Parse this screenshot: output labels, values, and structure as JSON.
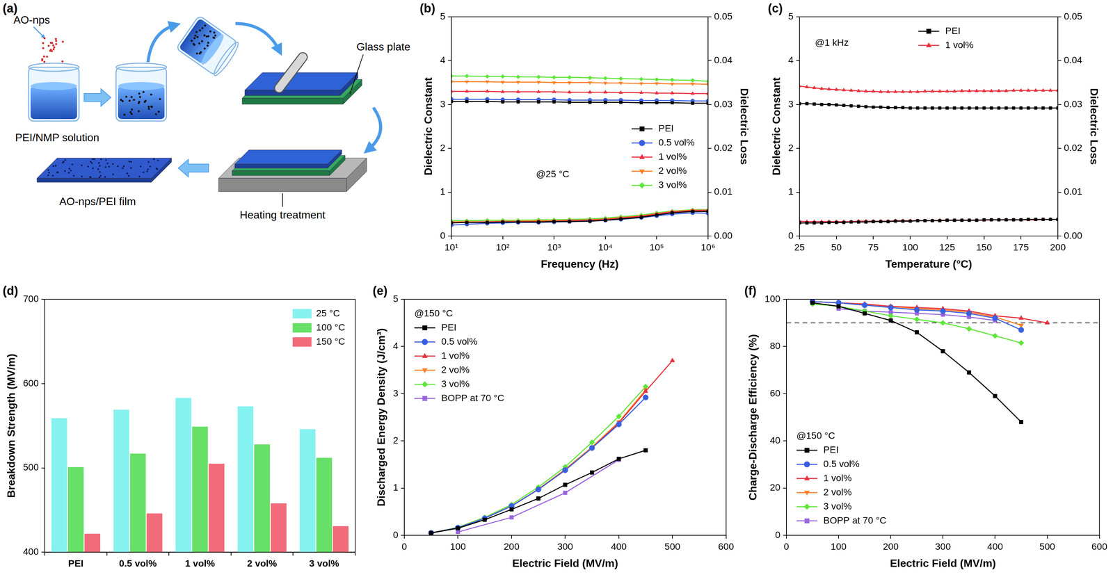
{
  "diagram": {
    "panel": "(a)",
    "labels": {
      "additive": "AO-nps",
      "solution": "PEI/NMP solution",
      "substrate": "Glass plate",
      "product": "AO-nps/PEI film",
      "treatment": "Heating treatment"
    }
  },
  "chart_data": [
    {
      "panel": "(b)",
      "type": "line",
      "x_label": "Frequency (Hz)",
      "y_label": "Dielectric Constant",
      "y2_label": "Dielectric Loss",
      "annotation": "@25 °C",
      "log": "x",
      "grid": false,
      "legend": "center right",
      "xlim": [
        10,
        1000000
      ],
      "xticks": [
        {
          "value": 10,
          "label": "10¹"
        },
        {
          "value": 100,
          "label": "10²"
        },
        {
          "value": 1000,
          "label": "10³"
        },
        {
          "value": 10000,
          "label": "10⁴"
        },
        {
          "value": 100000,
          "label": "10⁵"
        },
        {
          "value": 1000000,
          "label": "10⁶"
        }
      ],
      "ylim": [
        0,
        5
      ],
      "yticks": [
        0,
        1,
        2,
        3,
        4,
        5
      ],
      "y2lim": [
        0,
        0.05
      ],
      "y2ticks": [
        {
          "value": 0,
          "label": "0.00"
        },
        0.01,
        0.02,
        0.03,
        0.04,
        0.05
      ],
      "x": [
        10,
        20,
        50,
        100,
        200,
        500,
        1000,
        2000,
        5000,
        10000,
        20000,
        50000,
        100000,
        200000,
        500000,
        1000000
      ],
      "series": [
        {
          "name": "PEI",
          "color": "#000000",
          "marker": "square",
          "values": [
            3.07,
            3.07,
            3.07,
            3.06,
            3.06,
            3.06,
            3.06,
            3.05,
            3.05,
            3.05,
            3.05,
            3.04,
            3.04,
            3.04,
            3.03,
            3.03
          ],
          "y2_values": [
            0.003,
            0.0031,
            0.0031,
            0.0032,
            0.0032,
            0.0032,
            0.0033,
            0.0033,
            0.0034,
            0.0036,
            0.0039,
            0.0043,
            0.0048,
            0.0053,
            0.0056,
            0.0056
          ]
        },
        {
          "name": "0.5 vol%",
          "color": "#3a5fe0",
          "marker": "circle",
          "values": [
            3.12,
            3.12,
            3.12,
            3.11,
            3.11,
            3.11,
            3.11,
            3.1,
            3.1,
            3.1,
            3.1,
            3.09,
            3.09,
            3.09,
            3.08,
            3.08
          ],
          "y2_values": [
            0.0025,
            0.0027,
            0.0029,
            0.003,
            0.0031,
            0.0031,
            0.0032,
            0.0033,
            0.0034,
            0.0036,
            0.0038,
            0.0042,
            0.0046,
            0.005,
            0.0053,
            0.0052
          ]
        },
        {
          "name": "1 vol%",
          "color": "#e8303c",
          "marker": "triangle",
          "values": [
            3.3,
            3.3,
            3.3,
            3.29,
            3.29,
            3.29,
            3.29,
            3.28,
            3.28,
            3.28,
            3.27,
            3.27,
            3.26,
            3.26,
            3.25,
            3.25
          ],
          "y2_values": [
            0.0031,
            0.0031,
            0.0032,
            0.0032,
            0.0033,
            0.0033,
            0.0034,
            0.0035,
            0.0036,
            0.0038,
            0.0041,
            0.0045,
            0.005,
            0.0055,
            0.0058,
            0.0058
          ]
        },
        {
          "name": "2 vol%",
          "color": "#ff7f27",
          "marker": "triangle-down",
          "values": [
            3.52,
            3.52,
            3.52,
            3.51,
            3.51,
            3.51,
            3.5,
            3.5,
            3.5,
            3.49,
            3.49,
            3.48,
            3.48,
            3.47,
            3.47,
            3.46
          ],
          "y2_values": [
            0.0032,
            0.0033,
            0.0033,
            0.0034,
            0.0034,
            0.0035,
            0.0035,
            0.0036,
            0.0037,
            0.0039,
            0.0042,
            0.0046,
            0.0051,
            0.0056,
            0.0059,
            0.0059
          ]
        },
        {
          "name": "3 vol%",
          "color": "#5ee63a",
          "marker": "diamond",
          "values": [
            3.65,
            3.65,
            3.64,
            3.64,
            3.63,
            3.63,
            3.62,
            3.62,
            3.61,
            3.6,
            3.59,
            3.58,
            3.57,
            3.56,
            3.55,
            3.53
          ],
          "y2_values": [
            0.0035,
            0.0035,
            0.0036,
            0.0036,
            0.0036,
            0.0037,
            0.0037,
            0.0038,
            0.0039,
            0.0041,
            0.0044,
            0.0048,
            0.0053,
            0.0057,
            0.006,
            0.006
          ]
        }
      ]
    },
    {
      "panel": "(c)",
      "type": "line",
      "x_label": "Temperature (°C)",
      "y_label": "Dielectric Constant",
      "y2_label": "Dielectric Loss",
      "annotation": "@1 kHz",
      "grid": false,
      "legend": "upper center",
      "xlim": [
        25,
        200
      ],
      "xticks": [
        25,
        50,
        75,
        100,
        125,
        150,
        175,
        200
      ],
      "ylim": [
        0,
        5
      ],
      "yticks": [
        0,
        1,
        2,
        3,
        4,
        5
      ],
      "y2lim": [
        0,
        0.05
      ],
      "y2ticks": [
        {
          "value": 0,
          "label": "0.00"
        },
        0.01,
        0.02,
        0.03,
        0.04,
        0.05
      ],
      "x": [
        25,
        30,
        35,
        40,
        45,
        50,
        55,
        60,
        65,
        70,
        75,
        80,
        85,
        90,
        95,
        100,
        105,
        110,
        115,
        120,
        125,
        130,
        135,
        140,
        145,
        150,
        155,
        160,
        165,
        170,
        175,
        180,
        185,
        190,
        195,
        200
      ],
      "series": [
        {
          "name": "PEI",
          "color": "#000000",
          "marker": "square",
          "values": [
            3.02,
            3.02,
            3.01,
            3.0,
            3.0,
            2.99,
            2.98,
            2.97,
            2.96,
            2.95,
            2.94,
            2.94,
            2.93,
            2.93,
            2.93,
            2.92,
            2.92,
            2.92,
            2.92,
            2.92,
            2.92,
            2.92,
            2.92,
            2.92,
            2.92,
            2.92,
            2.92,
            2.92,
            2.92,
            2.92,
            2.92,
            2.92,
            2.92,
            2.92,
            2.92,
            2.92
          ],
          "y2_values": [
            0.003,
            0.003,
            0.003,
            0.003,
            0.0031,
            0.0031,
            0.0031,
            0.0032,
            0.0032,
            0.0032,
            0.0033,
            0.0033,
            0.0033,
            0.0034,
            0.0034,
            0.0034,
            0.0035,
            0.0035,
            0.0035,
            0.0035,
            0.0036,
            0.0036,
            0.0036,
            0.0036,
            0.0036,
            0.0037,
            0.0037,
            0.0037,
            0.0037,
            0.0037,
            0.0037,
            0.0038,
            0.0038,
            0.0038,
            0.0038,
            0.0038
          ]
        },
        {
          "name": "1 vol%",
          "color": "#e8303c",
          "marker": "triangle",
          "values": [
            3.42,
            3.4,
            3.38,
            3.36,
            3.35,
            3.34,
            3.33,
            3.32,
            3.31,
            3.3,
            3.3,
            3.29,
            3.29,
            3.29,
            3.29,
            3.29,
            3.29,
            3.3,
            3.3,
            3.3,
            3.3,
            3.3,
            3.31,
            3.31,
            3.31,
            3.31,
            3.31,
            3.31,
            3.31,
            3.32,
            3.32,
            3.32,
            3.32,
            3.32,
            3.32,
            3.32
          ],
          "y2_values": [
            0.0034,
            0.0033,
            0.0033,
            0.0033,
            0.0033,
            0.0033,
            0.0033,
            0.0033,
            0.0034,
            0.0034,
            0.0034,
            0.0034,
            0.0034,
            0.0035,
            0.0035,
            0.0035,
            0.0035,
            0.0035,
            0.0035,
            0.0036,
            0.0036,
            0.0036,
            0.0036,
            0.0036,
            0.0036,
            0.0036,
            0.0037,
            0.0037,
            0.0037,
            0.0037,
            0.0037,
            0.0037,
            0.0037,
            0.0038,
            0.0038,
            0.0038
          ]
        }
      ]
    },
    {
      "panel": "(d)",
      "type": "bar",
      "y_label": "Breakdown Strength (MV/m)",
      "grid": false,
      "legend": "upper right",
      "categories": [
        "PEI",
        "0.5 vol%",
        "1 vol%",
        "2 vol%",
        "3 vol%"
      ],
      "ylim": [
        400,
        700
      ],
      "yticks": [
        400,
        500,
        600,
        700
      ],
      "series": [
        {
          "name": "25 °C",
          "color": "#86f2f0",
          "values": [
            559,
            569,
            583,
            573,
            546
          ]
        },
        {
          "name": "100 °C",
          "color": "#66e066",
          "values": [
            501,
            517,
            549,
            528,
            512
          ]
        },
        {
          "name": "150 °C",
          "color": "#f26b7a",
          "values": [
            422,
            446,
            505,
            458,
            431
          ]
        }
      ]
    },
    {
      "panel": "(e)",
      "type": "line",
      "x_label": "Electric Field (MV/m)",
      "y_label": "Discharged Energy Density (J/cm³)",
      "annotation": "@150 °C",
      "grid": false,
      "legend": "upper left",
      "xlim": [
        0,
        600
      ],
      "xticks": [
        0,
        100,
        200,
        300,
        400,
        500,
        600
      ],
      "ylim": [
        0,
        5
      ],
      "yticks": [
        0,
        1,
        2,
        3,
        4,
        5
      ],
      "series": [
        {
          "name": "PEI",
          "color": "#000000",
          "marker": "square",
          "x": [
            50,
            100,
            150,
            200,
            250,
            300,
            350,
            400,
            450
          ],
          "values": [
            0.05,
            0.15,
            0.33,
            0.55,
            0.78,
            1.07,
            1.33,
            1.62,
            1.8
          ]
        },
        {
          "name": "0.5 vol%",
          "color": "#3a5fe0",
          "marker": "circle",
          "x": [
            50,
            100,
            150,
            200,
            250,
            300,
            350,
            400,
            450
          ],
          "values": [
            0.05,
            0.16,
            0.36,
            0.62,
            0.97,
            1.38,
            1.85,
            2.35,
            2.92
          ]
        },
        {
          "name": "1 vol%",
          "color": "#e8303c",
          "marker": "triangle",
          "x": [
            50,
            100,
            150,
            200,
            250,
            300,
            350,
            400,
            450,
            500
          ],
          "values": [
            0.05,
            0.16,
            0.36,
            0.62,
            0.97,
            1.38,
            1.85,
            2.38,
            3.05,
            3.7
          ]
        },
        {
          "name": "2 vol%",
          "color": "#ff7f27",
          "marker": "triangle-down",
          "x": [
            50,
            100,
            150,
            200,
            250,
            300,
            350,
            400,
            450
          ],
          "values": [
            0.05,
            0.16,
            0.36,
            0.62,
            0.98,
            1.4,
            1.87,
            2.4,
            3.08
          ]
        },
        {
          "name": "3 vol%",
          "color": "#5ee63a",
          "marker": "diamond",
          "x": [
            50,
            100,
            150,
            200,
            250,
            300,
            350,
            400,
            450
          ],
          "values": [
            0.05,
            0.17,
            0.38,
            0.65,
            1.02,
            1.45,
            1.97,
            2.52,
            3.15
          ]
        },
        {
          "name": "BOPP at 70 °C",
          "color": "#9966dd",
          "marker": "square",
          "x": [
            100,
            200,
            300,
            400
          ],
          "values": [
            0.07,
            0.38,
            0.9,
            1.6
          ]
        }
      ]
    },
    {
      "panel": "(f)",
      "type": "line",
      "x_label": "Electric Field (MV/m)",
      "y_label": "Charge-Discharge Efficiency (%)",
      "annotation": "@150 °C",
      "grid": false,
      "legend": "lower left",
      "xlim": [
        0,
        600
      ],
      "xticks": [
        0,
        100,
        200,
        300,
        400,
        500,
        600
      ],
      "ylim": [
        0,
        100
      ],
      "yticks": [
        0,
        20,
        40,
        60,
        80,
        100
      ],
      "reference_line": {
        "value": 90,
        "line_style": "dashed"
      },
      "series": [
        {
          "name": "PEI",
          "color": "#000000",
          "marker": "square",
          "x": [
            50,
            100,
            150,
            200,
            250,
            300,
            350,
            400,
            450
          ],
          "values": [
            98.5,
            97,
            94,
            91,
            86,
            78,
            69,
            59,
            48
          ]
        },
        {
          "name": "0.5 vol%",
          "color": "#3a5fe0",
          "marker": "circle",
          "x": [
            50,
            100,
            150,
            200,
            250,
            300,
            350,
            400,
            450
          ],
          "values": [
            99,
            98.5,
            97.5,
            96.5,
            95.5,
            95,
            94,
            92,
            87
          ]
        },
        {
          "name": "1 vol%",
          "color": "#e8303c",
          "marker": "triangle",
          "x": [
            50,
            100,
            150,
            200,
            250,
            300,
            350,
            400,
            450,
            500
          ],
          "values": [
            99,
            98.5,
            98,
            97,
            96.5,
            96,
            95,
            93,
            92,
            90
          ]
        },
        {
          "name": "2 vol%",
          "color": "#ff7f27",
          "marker": "triangle-down",
          "x": [
            50,
            100,
            150,
            200,
            250,
            300,
            350,
            400,
            450
          ],
          "values": [
            99,
            98.5,
            97.5,
            97,
            96,
            95.5,
            94.5,
            92.5,
            89
          ]
        },
        {
          "name": "3 vol%",
          "color": "#5ee63a",
          "marker": "diamond",
          "x": [
            50,
            100,
            150,
            200,
            250,
            300,
            350,
            400,
            450
          ],
          "values": [
            98,
            97,
            95,
            93,
            91.5,
            90,
            87.5,
            84.5,
            81.5
          ]
        },
        {
          "name": "BOPP at 70 °C",
          "color": "#9966dd",
          "marker": "square",
          "x": [
            100,
            150,
            200,
            250,
            300,
            350,
            400
          ],
          "values": [
            96,
            95,
            94.5,
            94,
            93.5,
            92.5,
            91
          ]
        }
      ]
    }
  ]
}
